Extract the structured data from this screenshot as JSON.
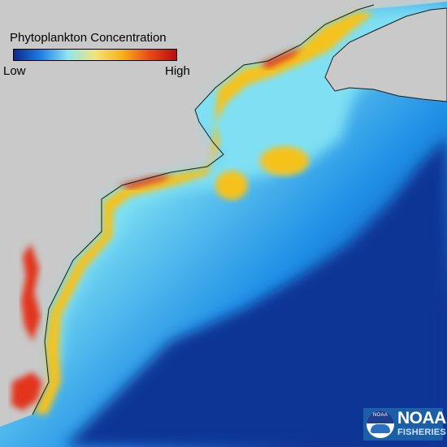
{
  "legend": {
    "title": "Phytoplankton Concentration",
    "low_label": "Low",
    "high_label": "High",
    "ramp_colors": [
      "#0a2a8c",
      "#1e7fe6",
      "#8fe6f0",
      "#f2e47a",
      "#f7b21a",
      "#ea4a14",
      "#b80e0e"
    ]
  },
  "map": {
    "land_color": "#c9c9c9",
    "coast_color": "#1a1a1a",
    "deep_ocean_color": "#0e3596",
    "mid_ocean_color": "#1f8fe6",
    "shelf_color": "#7fe0f3",
    "nearshore_color": "#f5c21c",
    "estuary_color": "#e2361a"
  },
  "logo": {
    "seal_text": "NOAA",
    "name": "NOAA",
    "subtitle": "FISHERIES",
    "color": "#1b5fa8"
  }
}
